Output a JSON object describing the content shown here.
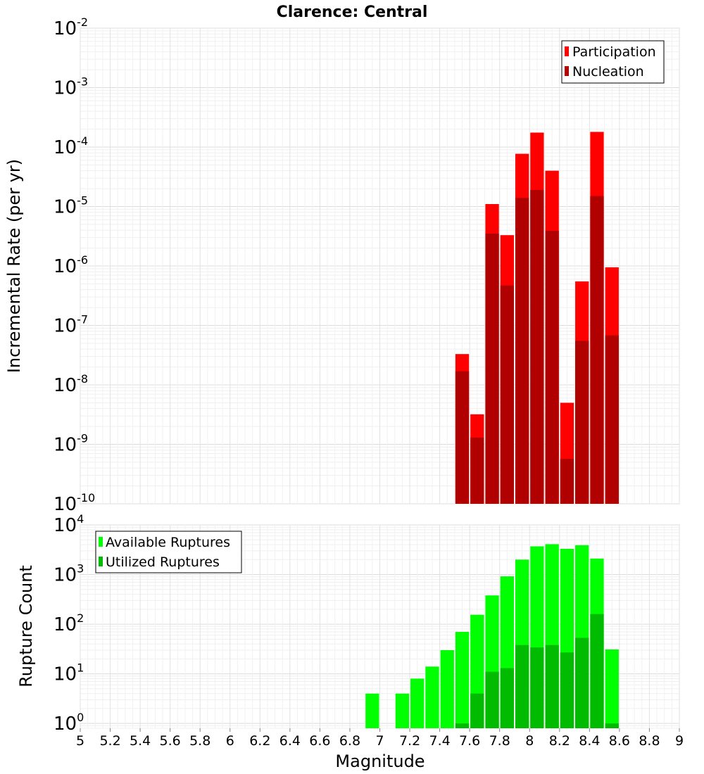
{
  "chart_data": [
    {
      "type": "bar",
      "title": "Clarence: Central",
      "xlabel": "Magnitude",
      "ylabel": "Incremental Rate (per yr)",
      "yscale": "log",
      "ylim": [
        1e-10,
        0.01
      ],
      "xlim": [
        5,
        9
      ],
      "y_tick_labels": [
        {
          "base": "10",
          "exp": "-10"
        },
        {
          "base": "10",
          "exp": "-9"
        },
        {
          "base": "10",
          "exp": "-8"
        },
        {
          "base": "10",
          "exp": "-7"
        },
        {
          "base": "10",
          "exp": "-6"
        },
        {
          "base": "10",
          "exp": "-5"
        },
        {
          "base": "10",
          "exp": "-4"
        },
        {
          "base": "10",
          "exp": "-3"
        },
        {
          "base": "10",
          "exp": "-2"
        }
      ],
      "grid": true,
      "legend_position": "top-right",
      "x": [
        7.55,
        7.65,
        7.75,
        7.85,
        7.95,
        8.05,
        8.15,
        8.25,
        8.35,
        8.45,
        8.55
      ],
      "series": [
        {
          "name": "Participation",
          "color": "#ff0000",
          "values": [
            3.3e-08,
            3.2e-09,
            1.1e-05,
            3.3e-06,
            7.7e-05,
            0.000175,
            4e-05,
            5e-09,
            5.5e-07,
            0.00018,
            9.5e-07
          ]
        },
        {
          "name": "Nucleation",
          "color": "#b00000",
          "values": [
            1.7e-08,
            1.3e-09,
            3.5e-06,
            4.7e-07,
            1.4e-05,
            1.9e-05,
            3.9e-06,
            5.7e-10,
            5.5e-08,
            1.5e-05,
            6.8e-08
          ]
        }
      ]
    },
    {
      "type": "bar",
      "xlabel": "Magnitude",
      "ylabel": "Rupture Count",
      "yscale": "log",
      "ylim": [
        0.8,
        10000.0
      ],
      "xlim": [
        5,
        9
      ],
      "y_tick_labels": [
        {
          "base": "10",
          "exp": "0"
        },
        {
          "base": "10",
          "exp": "1"
        },
        {
          "base": "10",
          "exp": "2"
        },
        {
          "base": "10",
          "exp": "3"
        },
        {
          "base": "10",
          "exp": "4"
        }
      ],
      "x_tick_labels": [
        "5",
        "5.2",
        "5.4",
        "5.6",
        "5.8",
        "6",
        "6.2",
        "6.4",
        "6.6",
        "6.8",
        "7",
        "7.2",
        "7.4",
        "7.6",
        "7.8",
        "8",
        "8.2",
        "8.4",
        "8.6",
        "8.8",
        "9"
      ],
      "grid": true,
      "legend_position": "top-left",
      "x": [
        6.95,
        7.15,
        7.25,
        7.35,
        7.45,
        7.55,
        7.65,
        7.75,
        7.85,
        7.95,
        8.05,
        8.15,
        8.25,
        8.35,
        8.45,
        8.55
      ],
      "series": [
        {
          "name": "Available Ruptures",
          "color": "#00ff00",
          "values": [
            4,
            4,
            8,
            14,
            30,
            70,
            155,
            380,
            920,
            2000,
            3700,
            4100,
            3300,
            3900,
            2100,
            31
          ]
        },
        {
          "name": "Utilized Ruptures",
          "color": "#00bb00",
          "values": [
            null,
            null,
            null,
            null,
            null,
            1,
            4,
            11,
            13,
            38,
            34,
            38,
            27,
            53,
            160,
            1
          ]
        }
      ]
    }
  ]
}
